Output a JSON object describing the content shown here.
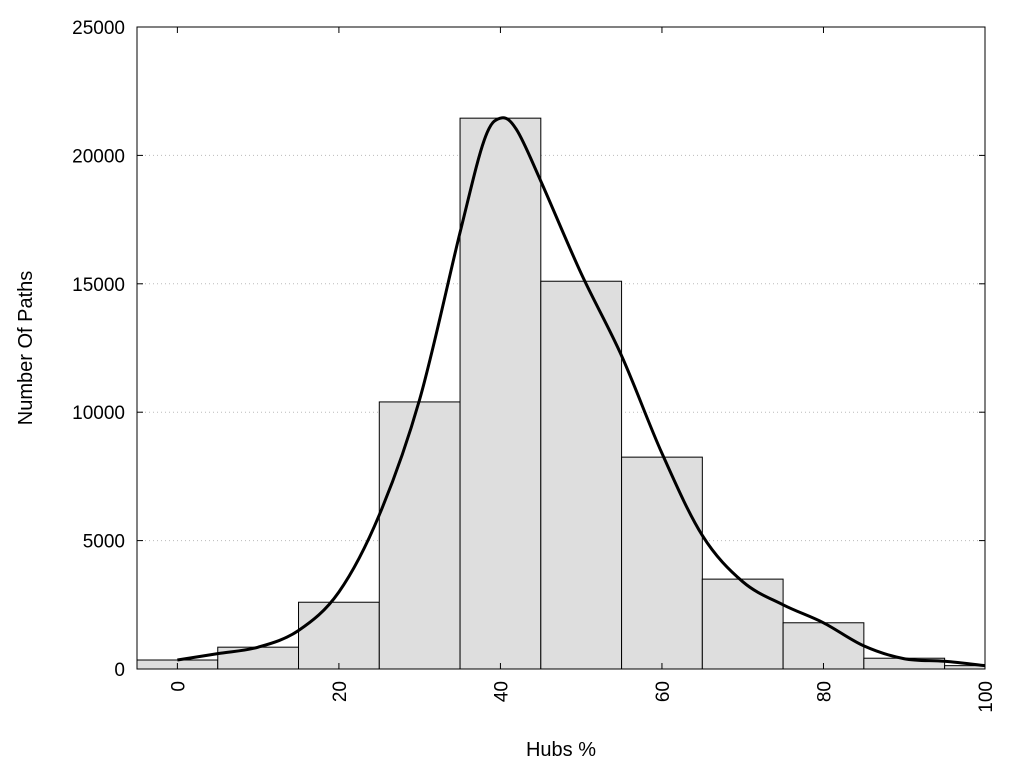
{
  "chart_data": {
    "type": "bar",
    "title": "",
    "xlabel": "Hubs %",
    "ylabel": "Number Of Paths",
    "xlim": [
      -5,
      100
    ],
    "ylim": [
      0,
      25000
    ],
    "x_ticks": [
      0,
      20,
      40,
      60,
      80,
      100
    ],
    "y_ticks": [
      0,
      5000,
      10000,
      15000,
      20000,
      25000
    ],
    "grid": "horizontal-dotted",
    "bin_width": 10,
    "bars": [
      {
        "x": 0,
        "value": 350
      },
      {
        "x": 10,
        "value": 850
      },
      {
        "x": 20,
        "value": 2600
      },
      {
        "x": 30,
        "value": 10400
      },
      {
        "x": 40,
        "value": 21450
      },
      {
        "x": 50,
        "value": 15100
      },
      {
        "x": 60,
        "value": 8250
      },
      {
        "x": 70,
        "value": 3500
      },
      {
        "x": 80,
        "value": 1800
      },
      {
        "x": 90,
        "value": 420
      },
      {
        "x": 100,
        "value": 130
      }
    ],
    "density_curve": [
      {
        "x": 0,
        "y": 350
      },
      {
        "x": 5,
        "y": 600
      },
      {
        "x": 10,
        "y": 850
      },
      {
        "x": 15,
        "y": 1500
      },
      {
        "x": 20,
        "y": 3000
      },
      {
        "x": 25,
        "y": 6000
      },
      {
        "x": 30,
        "y": 10500
      },
      {
        "x": 35,
        "y": 17000
      },
      {
        "x": 38,
        "y": 20600
      },
      {
        "x": 40,
        "y": 21450
      },
      {
        "x": 42,
        "y": 21000
      },
      {
        "x": 45,
        "y": 19000
      },
      {
        "x": 50,
        "y": 15400
      },
      {
        "x": 55,
        "y": 12200
      },
      {
        "x": 60,
        "y": 8400
      },
      {
        "x": 65,
        "y": 5200
      },
      {
        "x": 70,
        "y": 3400
      },
      {
        "x": 75,
        "y": 2500
      },
      {
        "x": 80,
        "y": 1800
      },
      {
        "x": 85,
        "y": 900
      },
      {
        "x": 90,
        "y": 400
      },
      {
        "x": 95,
        "y": 300
      },
      {
        "x": 100,
        "y": 130
      }
    ],
    "colors": {
      "bar_fill": "#dedede",
      "bar_stroke": "#000000",
      "curve": "#000000",
      "grid": "#bbbbbb"
    }
  }
}
